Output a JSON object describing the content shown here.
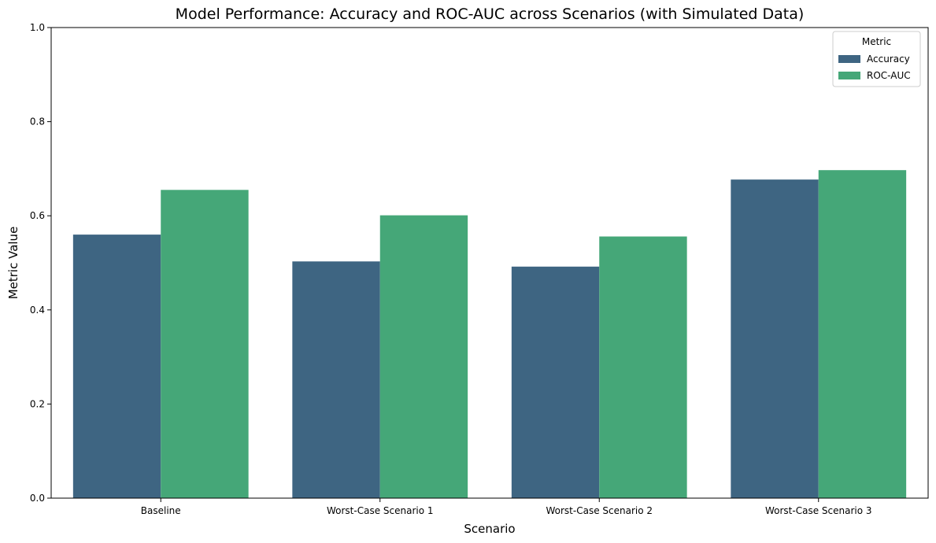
{
  "chart_data": {
    "type": "bar",
    "title": "Model Performance: Accuracy and ROC-AUC across Scenarios (with Simulated Data)",
    "xlabel": "Scenario",
    "ylabel": "Metric Value",
    "ylim": [
      0,
      1
    ],
    "yticks": [
      "0.0",
      "0.2",
      "0.4",
      "0.6",
      "0.8",
      "1.0"
    ],
    "categories": [
      "Baseline",
      "Worst-Case Scenario 1",
      "Worst-Case Scenario 2",
      "Worst-Case Scenario 3"
    ],
    "series": [
      {
        "name": "Accuracy",
        "color": "#3e6582",
        "values": [
          0.56,
          0.503,
          0.492,
          0.677
        ]
      },
      {
        "name": "ROC-AUC",
        "color": "#45a778",
        "values": [
          0.655,
          0.601,
          0.556,
          0.697
        ]
      }
    ],
    "legend": {
      "title": "Metric",
      "placement": "top-right"
    },
    "grid": false
  }
}
